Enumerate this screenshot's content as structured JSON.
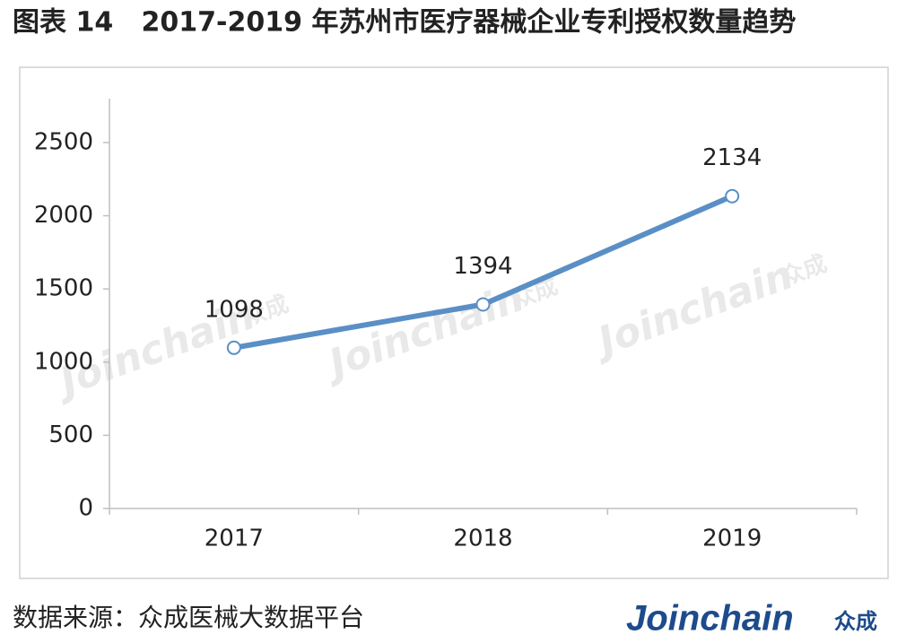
{
  "chart_data": {
    "type": "line",
    "title": "图表 14   2017-2019 年苏州市医疗器械企业专利授权数量趋势",
    "categories": [
      "2017",
      "2018",
      "2019"
    ],
    "values": [
      1098,
      1394,
      2134
    ],
    "color": "#5a8fc6",
    "ylim": [
      0,
      2800
    ],
    "yticks": [
      0,
      500,
      1000,
      1500,
      2000,
      2500
    ],
    "grid": false
  },
  "footer": {
    "source": "数据来源：众成医械大数据平台",
    "logo": "Joinchain",
    "logo_suffix": "众成"
  },
  "watermark": {
    "text": "Joinchain",
    "suffix": "众成"
  }
}
